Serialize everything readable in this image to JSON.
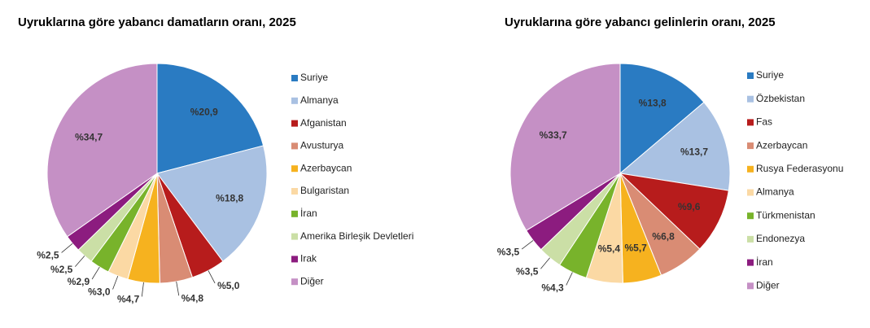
{
  "chart_data": [
    {
      "type": "pie",
      "title": "Uyruklarına göre yabancı damatların oranı, 2025",
      "categories": [
        "Suriye",
        "Almanya",
        "Afganistan",
        "Avusturya",
        "Azerbaycan",
        "Bulgaristan",
        "İran",
        "Amerika Birleşik Devletleri",
        "Irak",
        "Diğer"
      ],
      "values": [
        20.9,
        18.8,
        5.0,
        4.8,
        4.7,
        3.0,
        2.9,
        2.5,
        2.5,
        34.7
      ],
      "value_labels": [
        "%20,9",
        "%18,8",
        "%5,0",
        "%4,8",
        "%4,7",
        "%3,0",
        "%2,9",
        "%2,5",
        "%2,5",
        "%34,7"
      ],
      "colors": [
        "#2a7bc2",
        "#a9c1e2",
        "#b71c1c",
        "#d98c74",
        "#f6b21f",
        "#fbd9a4",
        "#78b32b",
        "#cbdfa6",
        "#8c1c7f",
        "#c590c5"
      ]
    },
    {
      "type": "pie",
      "title": "Uyruklarına göre yabancı gelinlerin oranı, 2025",
      "categories": [
        "Suriye",
        "Özbekistan",
        "Fas",
        "Azerbaycan",
        "Rusya Federasyonu",
        "Almanya",
        "Türkmenistan",
        "Endonezya",
        "İran",
        "Diğer"
      ],
      "values": [
        13.8,
        13.7,
        9.6,
        6.8,
        5.7,
        5.4,
        4.3,
        3.5,
        3.5,
        33.7
      ],
      "value_labels": [
        "%13,8",
        "%13,7",
        "%9,6",
        "%6,8",
        "%5,7",
        "%5,4",
        "%4,3",
        "%3,5",
        "%3,5",
        "%33,7"
      ],
      "colors": [
        "#2a7bc2",
        "#a9c1e2",
        "#b71c1c",
        "#d98c74",
        "#f6b21f",
        "#fbd9a4",
        "#78b32b",
        "#cbdfa6",
        "#8c1c7f",
        "#c590c5"
      ]
    }
  ]
}
